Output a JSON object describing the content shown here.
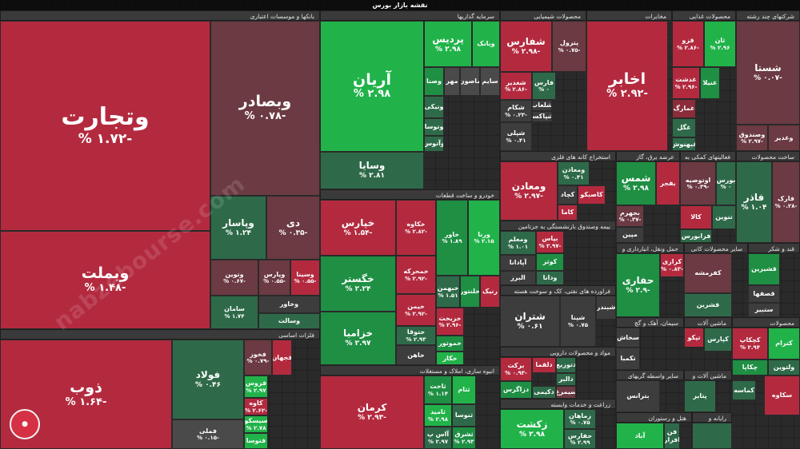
{
  "title": "نقشه بازار بورس",
  "watermark": "nabzebourse.com",
  "sectors": {
    "banks": "بانکها و موسسات اعتباری",
    "investments": "سرمایه گذاریها",
    "chemicals": "محصولات شیمیایی",
    "telecom": "مخابرات",
    "food": "محصولات غذایی",
    "multi": "شرکتهای چند رشته",
    "metals": "فلزات اساسی",
    "auto": "خودرو و ساخت قطعات",
    "construction": "انبوه سازی، املاک و مستغلات",
    "mining": "استخراج کانه های فلزی",
    "utilities": "عرضه برق، گاز",
    "finaux": "فعالیتهای کمکی به",
    "mineral": "ساخت محصولات",
    "insurance": "بیمه وصندوق بازنشستگی به جزتامین",
    "oil": "فراورده های نفتی، کک و سوخت هسته",
    "pharma": "مواد و محصولات دارویی",
    "agri": "زراعت و خدمات وابسته",
    "transport": "حمل ونقل، انبارداری و",
    "nonmetal": "سایر محصولات کانی",
    "sugar": "قند و شکر",
    "cement": "سیمان، آهک و گچ",
    "machinery": "ماشین آلات",
    "products": "محصولات",
    "electrical": "سایر واسطه گریهای",
    "machines2": "ماشین آلات و",
    "hotel": "هتل و رستوران",
    "computer": "رایانه و"
  },
  "cells": [
    {
      "n": "وتجارت",
      "p": "-۱.۷۲ %"
    },
    {
      "n": "وبصادر",
      "p": "-۰.۷۸ %"
    },
    {
      "n": "وبملت",
      "p": "-۱.۴۸ %"
    },
    {
      "n": "وپاسار",
      "p": "۱.۲۴ %"
    },
    {
      "n": "دی",
      "p": "-۰.۳۵ %"
    },
    {
      "n": "وتوین",
      "p": "-۰.۶۷ %"
    },
    {
      "n": "وپارس",
      "p": "-۰.۵۵ %"
    },
    {
      "n": "وسینا",
      "p": "-۰.۵۵ %"
    },
    {
      "n": "سامان",
      "p": "۱.۷۴ %"
    },
    {
      "n": "وخاور"
    },
    {
      "n": "وسالت"
    },
    {
      "n": "ذوب",
      "p": "-۱.۶۴ %"
    },
    {
      "n": "فولاد",
      "p": "۰.۴۶ %"
    },
    {
      "n": "فخوز",
      "p": "-۰.۷۹ %"
    },
    {
      "n": "فجهان"
    },
    {
      "n": "فروس",
      "p": "۲.۹۷ %"
    },
    {
      "n": "کاوه",
      "p": "-۲.۶۲ %"
    },
    {
      "n": "سیسکو",
      "p": "۲.۷۸ %"
    },
    {
      "n": "فتوسا"
    },
    {
      "n": "فملی",
      "p": "-۰.۱۵ %"
    },
    {
      "n": "آریان",
      "p": "۲.۹۸ %"
    },
    {
      "n": "پردیس",
      "p": "۲.۹۸ %"
    },
    {
      "n": "وبانک"
    },
    {
      "n": "وصنا"
    },
    {
      "n": "مهر"
    },
    {
      "n": "ماصون"
    },
    {
      "n": "سایم"
    },
    {
      "n": "ونیکی"
    },
    {
      "n": "وتوسا"
    },
    {
      "n": "وآتوس"
    },
    {
      "n": "وسایا",
      "p": "۲.۸۱ %"
    },
    {
      "n": "خپارس",
      "p": "-۱.۵۴ %"
    },
    {
      "n": "خکاوه",
      "p": "-۲.۸۲ %"
    },
    {
      "n": "خاور",
      "p": "۱.۸۹ %"
    },
    {
      "n": "ورنا",
      "p": "۲.۱۵ %"
    },
    {
      "n": "خگستر",
      "p": "۲.۲۴ %"
    },
    {
      "n": "خمحرکه",
      "p": "-۲.۹۲ %"
    },
    {
      "n": "خزامیا",
      "p": "۲.۹۷ %"
    },
    {
      "n": "خیمن",
      "p": "-۲.۹۲ %"
    },
    {
      "n": "ختوقا",
      "p": "۲.۹۳ %"
    },
    {
      "n": "خاهن"
    },
    {
      "n": "خبهمن",
      "p": "۱.۵۱ %"
    },
    {
      "n": "خلنتور"
    },
    {
      "n": "رنیک"
    },
    {
      "n": "خریخت",
      "p": "-۲.۹۶ %"
    },
    {
      "n": "خموتور"
    },
    {
      "n": "خکار"
    },
    {
      "n": "کرمان",
      "p": "-۲.۹۳ %"
    },
    {
      "n": "ثاخت",
      "p": "۱.۱۴ %"
    },
    {
      "n": "ثتام"
    },
    {
      "n": "ثامید",
      "p": "۲.۹۸ %"
    },
    {
      "n": "ثنوسا"
    },
    {
      "n": "آاس پ",
      "p": "۲.۹۷ %"
    },
    {
      "n": "ثشرق",
      "p": "۲.۹۳ %"
    },
    {
      "n": "شفارس",
      "p": "-۲.۹۸ %"
    },
    {
      "n": "پترول",
      "p": "-۰.۷۵ %"
    },
    {
      "n": "شغدیر",
      "p": "-۲.۸۶ %"
    },
    {
      "n": "فارس",
      "p": "۰ %"
    },
    {
      "n": "شکام",
      "p": "-۰.۲۳ %"
    },
    {
      "n": "شلعاب"
    },
    {
      "n": "شپاکسا"
    },
    {
      "n": "شپلی",
      "p": "۰.۴۱ %"
    },
    {
      "n": "اخابر",
      "p": "-۲.۹۲ %"
    },
    {
      "n": "قزو",
      "p": "-۲.۸۶ %"
    },
    {
      "n": "ثان",
      "p": "۲.۹۶ %"
    },
    {
      "n": "غدشت",
      "p": "-۲.۹۶ %"
    },
    {
      "n": "غنیلا"
    },
    {
      "n": "غمارگ"
    },
    {
      "n": "غگل"
    },
    {
      "n": "غبهنوش"
    },
    {
      "n": "شستا",
      "p": "-۰.۰۷ %"
    },
    {
      "n": "وصندوق",
      "p": "-۲.۹۷ %"
    },
    {
      "n": "وغدیر"
    },
    {
      "n": "ومعادن",
      "p": "-۲.۹۷ %"
    },
    {
      "n": "ومعادن",
      "p": "۰.۴۱ %"
    },
    {
      "n": "کچاد"
    },
    {
      "n": "کاصبکو"
    },
    {
      "n": "کاما"
    },
    {
      "n": "شمس",
      "p": "۲.۹۸ %"
    },
    {
      "n": "بفجر"
    },
    {
      "n": "بجهرم",
      "p": "-۰.۳۷ %"
    },
    {
      "n": "مپین"
    },
    {
      "n": "اوتوصیه",
      "p": "-۰.۳۹ %"
    },
    {
      "n": "بورس",
      "p": "۰ %"
    },
    {
      "n": "کالا"
    },
    {
      "n": "تنوین"
    },
    {
      "n": "فرابورس"
    },
    {
      "n": "فاذر",
      "p": "۱.۰۴ %"
    },
    {
      "n": "فارک",
      "p": "-۰.۲۸ %"
    },
    {
      "n": "ومعلم",
      "p": "۱.۰۱ %"
    },
    {
      "n": "بپاس",
      "p": "-۲.۹۷ %"
    },
    {
      "n": "آپادانا"
    },
    {
      "n": "کوثر"
    },
    {
      "n": "البرز"
    },
    {
      "n": "ودانا"
    },
    {
      "n": "شتران",
      "p": "۰.۶۱ %"
    },
    {
      "n": "شپنا",
      "p": "۰.۷۵ %"
    },
    {
      "n": "شبندر"
    },
    {
      "n": "برکت",
      "p": "-۰.۹۳ %"
    },
    {
      "n": "دلقما"
    },
    {
      "n": "دتوزیع"
    },
    {
      "n": "دالبر"
    },
    {
      "n": "دکیمی"
    },
    {
      "n": "دزاگرس"
    },
    {
      "n": "سیمرغ",
      "p": "۲.۳۶ %"
    },
    {
      "n": "زکشت",
      "p": "۲.۹۸ %"
    },
    {
      "n": "زماهان",
      "p": "۰.۷۵ %"
    },
    {
      "n": "حفارس",
      "p": "۲.۹۹ %"
    },
    {
      "n": "حفاری",
      "p": "-۲.۹ %"
    },
    {
      "n": "کرازی",
      "p": "-۰.۸۳ %"
    },
    {
      "n": "کفرمشه"
    },
    {
      "n": "قشرین",
      "p": "۲.۹۸ %"
    },
    {
      "n": "قشیرین"
    },
    {
      "n": "قصفها"
    },
    {
      "n": "ستبیر"
    },
    {
      "n": "سخاش"
    },
    {
      "n": "تکمبا"
    },
    {
      "n": "تپکو"
    },
    {
      "n": "کپارس",
      "p": "-۲.۹۸ %"
    },
    {
      "n": "کچکاپ",
      "p": "۲.۹۴ %"
    },
    {
      "n": "کترام"
    },
    {
      "n": "چکاپا"
    },
    {
      "n": "ولتوین"
    },
    {
      "n": "بترانس",
      "p": "۱.۵۶ %"
    },
    {
      "n": "پتایر"
    },
    {
      "n": "کماسه"
    },
    {
      "n": "سکاوه",
      "p": "۲.۹۵ %"
    },
    {
      "n": "آباد"
    },
    {
      "n": "فن افزار"
    }
  ]
}
